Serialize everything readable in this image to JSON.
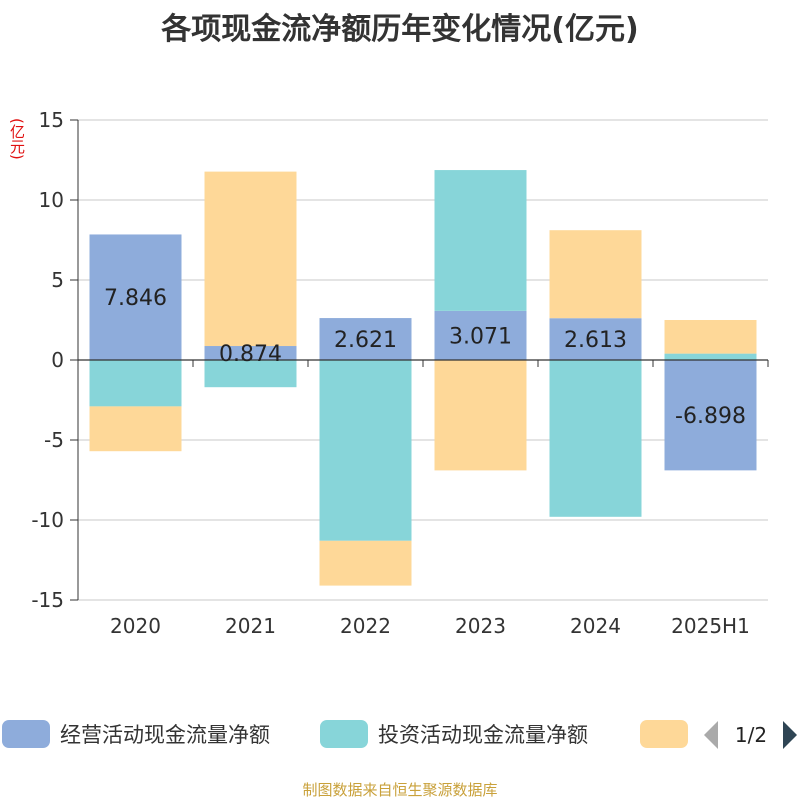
{
  "chart_data": {
    "type": "bar",
    "stacked": true,
    "title": "各项现金流净额历年变化情况(亿元)",
    "ylabel": "(亿元)",
    "categories": [
      "2020",
      "2021",
      "2022",
      "2023",
      "2024",
      "2025H1"
    ],
    "ylim": [
      -15,
      15
    ],
    "yticks": [
      15,
      10,
      5,
      0,
      -5,
      -10,
      -15
    ],
    "grid": true,
    "series": [
      {
        "name": "经营活动现金流量净额",
        "color": "#8eacdb",
        "values": [
          7.846,
          0.874,
          2.621,
          3.071,
          2.613,
          -6.898
        ],
        "show_labels": true
      },
      {
        "name": "投资活动现金流量净额",
        "color": "#87d5d9",
        "values": [
          -2.9,
          -1.7,
          -11.3,
          8.8,
          -9.8,
          0.4
        ],
        "show_labels": false
      },
      {
        "name": "",
        "color": "#fed898",
        "values": [
          -2.8,
          10.9,
          -2.8,
          -6.9,
          5.5,
          2.1
        ],
        "show_labels": false
      }
    ],
    "legend": {
      "position": "bottom",
      "page": "1/2"
    }
  },
  "footer": "制图数据来自恒生聚源数据库"
}
